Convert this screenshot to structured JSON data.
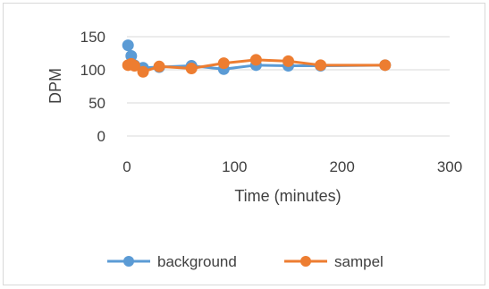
{
  "chart_data": {
    "type": "scatter",
    "title": "",
    "xlabel": "Time (minutes)",
    "ylabel": "DPM",
    "xlim": [
      0,
      300
    ],
    "ylim": [
      0,
      150
    ],
    "xticks": [
      0,
      100,
      200,
      300
    ],
    "yticks": [
      0,
      50,
      100,
      150
    ],
    "grid": "horizontal",
    "legend_position": "bottom",
    "series": [
      {
        "name": "background",
        "color": "#5b9bd5",
        "x": [
          1,
          4,
          7,
          15,
          30,
          60,
          90,
          120,
          150,
          180,
          240
        ],
        "y": [
          137,
          121,
          107,
          103,
          104,
          106,
          101,
          107,
          106,
          106,
          107
        ]
      },
      {
        "name": "sampel",
        "color": "#ed7d31",
        "x": [
          1,
          4,
          7,
          15,
          30,
          60,
          90,
          120,
          150,
          180,
          240
        ],
        "y": [
          107,
          109,
          106,
          97,
          105,
          102,
          110,
          115,
          113,
          107,
          107
        ]
      }
    ]
  }
}
